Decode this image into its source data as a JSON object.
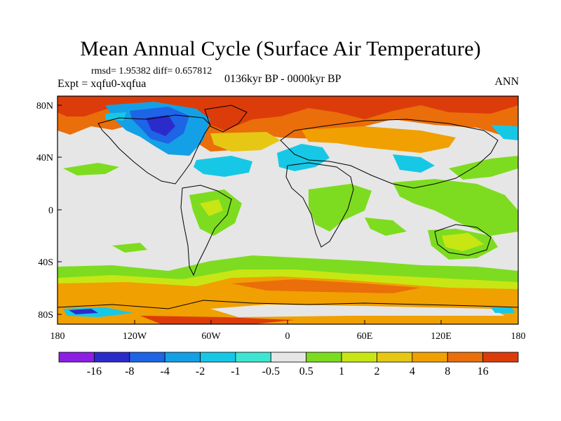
{
  "title": "Mean Annual Cycle (Surface Air Temperature)",
  "stats": "rmsd= 1.95382 diff= 0.657812",
  "experiment": "Expt = xqfu0-xqfua",
  "period": "0136kyr BP - 0000kyr BP",
  "season": "ANN",
  "latitude_labels": [
    "80N",
    "40N",
    "0",
    "40S",
    "80S"
  ],
  "longitude_labels": [
    "180",
    "120W",
    "60W",
    "0",
    "60E",
    "120E",
    "180"
  ],
  "colorbar": {
    "bins": [
      {
        "color": "#8c1ee6"
      },
      {
        "color": "#2b2bcc"
      },
      {
        "color": "#1e64e6"
      },
      {
        "color": "#14a0e6"
      },
      {
        "color": "#16c8e6"
      },
      {
        "color": "#3ee6d2"
      },
      {
        "color": "#e6e6e6"
      },
      {
        "color": "#7ddc1f"
      },
      {
        "color": "#c8e614"
      },
      {
        "color": "#e6c814"
      },
      {
        "color": "#f0a000"
      },
      {
        "color": "#ea6e0a"
      },
      {
        "color": "#dc3c0a"
      }
    ],
    "labels": [
      "-16",
      "-8",
      "-4",
      "-2",
      "-1",
      "-0.5",
      "0.5",
      "1",
      "2",
      "4",
      "8",
      "16"
    ]
  },
  "colors": {
    "background_ocean_neutral": "#e6e6e6",
    "coastline": "#000000"
  }
}
